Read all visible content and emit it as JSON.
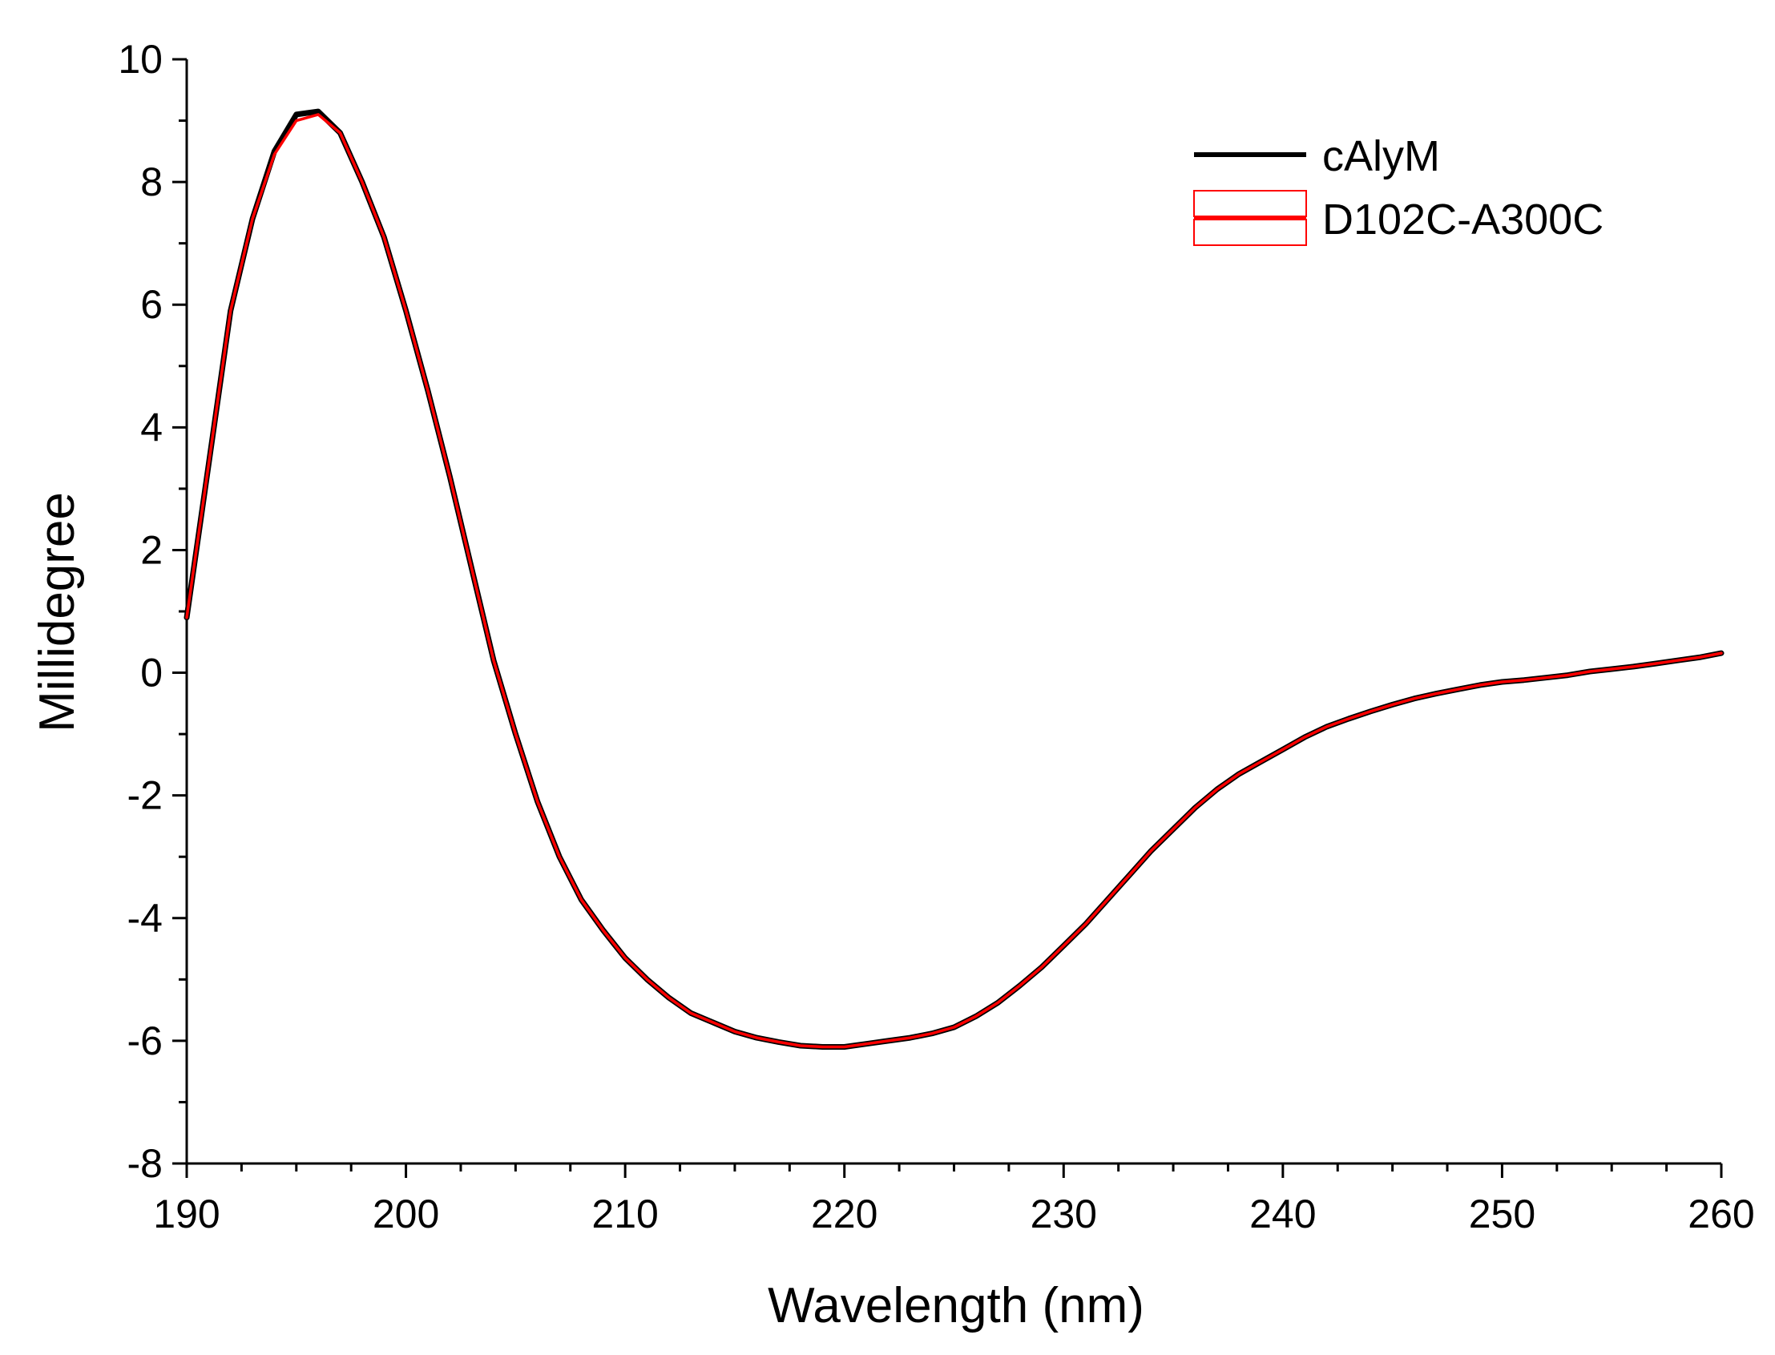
{
  "chart_data": {
    "type": "line",
    "title": "",
    "xlabel": "Wavelength (nm)",
    "ylabel": "Millidegree",
    "xlim": [
      190,
      260
    ],
    "ylim": [
      -8,
      10
    ],
    "x_ticks": [
      190,
      200,
      210,
      220,
      230,
      240,
      250,
      260
    ],
    "y_ticks": [
      -8,
      -6,
      -4,
      -2,
      0,
      2,
      4,
      6,
      8,
      10
    ],
    "x_tick_labels": [
      "190",
      "200",
      "210",
      "220",
      "230",
      "240",
      "250",
      "260"
    ],
    "y_tick_labels": [
      "-8",
      "-6",
      "-4",
      "-2",
      "0",
      "2",
      "4",
      "6",
      "8",
      "10"
    ],
    "x_minor_step": 2.5,
    "y_minor_step": 1,
    "grid": false,
    "legend_position": "top-right",
    "series": [
      {
        "name": "cAlyM",
        "color": "#000000",
        "x": [
          190,
          191,
          192,
          193,
          194,
          195,
          196,
          197,
          198,
          199,
          200,
          201,
          202,
          203,
          204,
          205,
          206,
          207,
          208,
          209,
          210,
          211,
          212,
          213,
          214,
          215,
          216,
          217,
          218,
          219,
          220,
          221,
          222,
          223,
          224,
          225,
          226,
          227,
          228,
          229,
          230,
          231,
          232,
          233,
          234,
          235,
          236,
          237,
          238,
          239,
          240,
          241,
          242,
          243,
          244,
          245,
          246,
          247,
          248,
          249,
          250,
          251,
          252,
          253,
          254,
          255,
          256,
          257,
          258,
          259,
          260
        ],
        "y": [
          0.9,
          3.4,
          5.9,
          7.4,
          8.5,
          9.1,
          9.15,
          8.8,
          8.0,
          7.1,
          5.9,
          4.6,
          3.2,
          1.7,
          0.2,
          -1.0,
          -2.1,
          -3.0,
          -3.7,
          -4.2,
          -4.65,
          -5.0,
          -5.3,
          -5.55,
          -5.7,
          -5.85,
          -5.95,
          -6.02,
          -6.08,
          -6.1,
          -6.1,
          -6.05,
          -6.0,
          -5.95,
          -5.88,
          -5.78,
          -5.6,
          -5.38,
          -5.1,
          -4.8,
          -4.45,
          -4.1,
          -3.7,
          -3.3,
          -2.9,
          -2.55,
          -2.2,
          -1.9,
          -1.65,
          -1.45,
          -1.25,
          -1.05,
          -0.88,
          -0.75,
          -0.63,
          -0.52,
          -0.42,
          -0.34,
          -0.27,
          -0.2,
          -0.15,
          -0.12,
          -0.08,
          -0.04,
          0.02,
          0.06,
          0.1,
          0.15,
          0.2,
          0.25,
          0.32
        ]
      },
      {
        "name": "D102C-A300C",
        "color": "#ff0000",
        "x": [
          190,
          191,
          192,
          193,
          194,
          195,
          196,
          197,
          198,
          199,
          200,
          201,
          202,
          203,
          204,
          205,
          206,
          207,
          208,
          209,
          210,
          211,
          212,
          213,
          214,
          215,
          216,
          217,
          218,
          219,
          220,
          221,
          222,
          223,
          224,
          225,
          226,
          227,
          228,
          229,
          230,
          231,
          232,
          233,
          234,
          235,
          236,
          237,
          238,
          239,
          240,
          241,
          242,
          243,
          244,
          245,
          246,
          247,
          248,
          249,
          250,
          251,
          252,
          253,
          254,
          255,
          256,
          257,
          258,
          259,
          260
        ],
        "y": [
          0.9,
          3.4,
          5.9,
          7.4,
          8.45,
          9.0,
          9.1,
          8.8,
          8.0,
          7.1,
          5.9,
          4.6,
          3.2,
          1.7,
          0.2,
          -1.0,
          -2.1,
          -3.0,
          -3.7,
          -4.2,
          -4.65,
          -5.0,
          -5.3,
          -5.55,
          -5.7,
          -5.85,
          -5.95,
          -6.02,
          -6.08,
          -6.1,
          -6.1,
          -6.05,
          -6.0,
          -5.95,
          -5.88,
          -5.78,
          -5.6,
          -5.38,
          -5.1,
          -4.8,
          -4.45,
          -4.1,
          -3.7,
          -3.3,
          -2.9,
          -2.55,
          -2.2,
          -1.9,
          -1.65,
          -1.45,
          -1.25,
          -1.05,
          -0.88,
          -0.75,
          -0.63,
          -0.52,
          -0.42,
          -0.34,
          -0.27,
          -0.2,
          -0.15,
          -0.12,
          -0.08,
          -0.04,
          0.02,
          0.06,
          0.1,
          0.15,
          0.2,
          0.25,
          0.32
        ]
      }
    ]
  }
}
